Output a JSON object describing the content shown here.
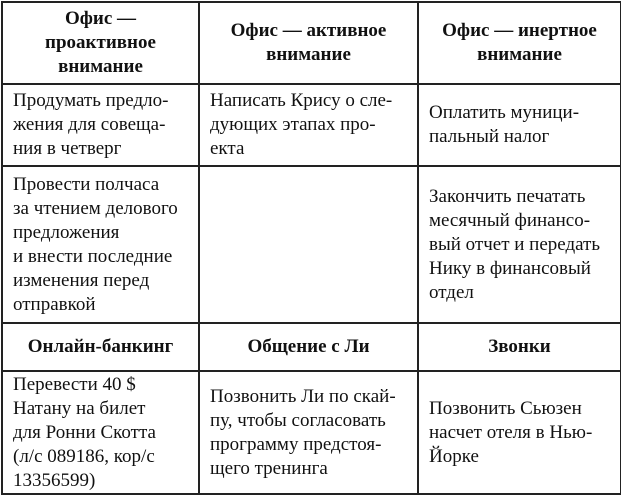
{
  "table": {
    "header1": [
      "Офис —\nпроактивное\nвнимание",
      "Офис — активное\nвнимание",
      "Офис — инертное\nвнимание"
    ],
    "row1": [
      "Продумать предло-\nжения для совеща-\nния в четверг",
      "Написать Крису о сле-\nдующих этапах про-\nекта",
      "Оплатить муници-\nпальный налог"
    ],
    "row2": [
      "Провести полчаса\nза чтением делового\nпредложения\nи внести последние\nизменения перед\nотправкой",
      "",
      "Закончить печатать\nмесячный финансо-\nвый отчет и передать\nНику в финансовый\nотдел"
    ],
    "header2": [
      "Онлайн-банкинг",
      "Общение с Ли",
      "Звонки"
    ],
    "row3": [
      "Перевести 40 $\nНатану на билет\nдля Ронни Скотта\n(л/с 089186, кор/с\n13356599)",
      "Позвонить Ли по скай-\nпу, чтобы согласовать\nпрограмму предстоя-\nщего тренинга",
      "Позвонить Сьюзен\nнасчет отеля в Нью-\nЙорке"
    ]
  }
}
